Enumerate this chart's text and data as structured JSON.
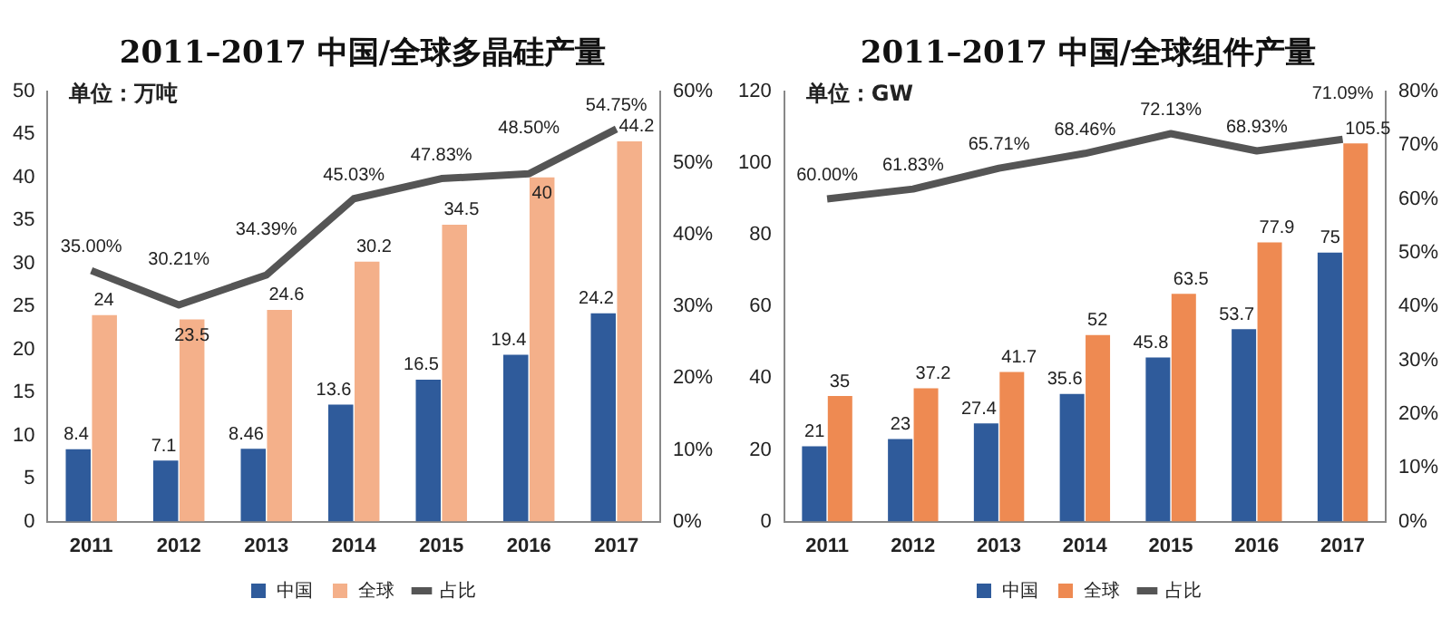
{
  "chart_data": [
    {
      "type": "bar",
      "title": "2011–2017 中国/全球多晶硅产量",
      "ylabel": "单位：万吨",
      "categories": [
        "2011",
        "2012",
        "2013",
        "2014",
        "2015",
        "2016",
        "2017"
      ],
      "series": [
        {
          "name": "中国",
          "color": "#2f5b9b",
          "values": [
            8.4,
            7.1,
            8.46,
            13.6,
            16.5,
            19.4,
            24.2
          ],
          "value_labels": [
            "8.4",
            "7.1",
            "8.46",
            "13.6",
            "16.5",
            "19.4",
            "24.2"
          ]
        },
        {
          "name": "全球",
          "color": "#f4b08a",
          "values": [
            24,
            23.5,
            24.6,
            30.2,
            34.5,
            40,
            44.2
          ],
          "value_labels": [
            "24",
            "23.5",
            "24.6",
            "30.2",
            "34.5",
            "40",
            "44.2"
          ]
        },
        {
          "name": "占比",
          "type": "line",
          "axis": "y2",
          "color": "#555555",
          "values": [
            35.0,
            30.21,
            34.39,
            45.03,
            47.83,
            48.5,
            54.75
          ],
          "value_labels": [
            "35.00%",
            "30.21%",
            "34.39%",
            "45.03%",
            "47.83%",
            "48.50%",
            "54.75%"
          ]
        }
      ],
      "ylim": [
        0,
        50
      ],
      "yticks": [
        0,
        5,
        10,
        15,
        20,
        25,
        30,
        35,
        40,
        45,
        50
      ],
      "y2lim": [
        0,
        60
      ],
      "y2ticks": [
        {
          "value": 0,
          "label": "0%"
        },
        {
          "value": 10,
          "label": "10%"
        },
        {
          "value": 20,
          "label": "20%"
        },
        {
          "value": 30,
          "label": "30%"
        },
        {
          "value": 40,
          "label": "40%"
        },
        {
          "value": 50,
          "label": "50%"
        },
        {
          "value": 60,
          "label": "60%"
        }
      ],
      "legend": "bottom",
      "marker": "none"
    },
    {
      "type": "bar",
      "title": "2011–2017 中国/全球组件产量",
      "ylabel": "单位：GW",
      "categories": [
        "2011",
        "2012",
        "2013",
        "2014",
        "2015",
        "2016",
        "2017"
      ],
      "series": [
        {
          "name": "中国",
          "color": "#2f5b9b",
          "values": [
            21,
            23,
            27.4,
            35.6,
            45.8,
            53.7,
            75
          ],
          "value_labels": [
            "21",
            "23",
            "27.4",
            "35.6",
            "45.8",
            "53.7",
            "75"
          ]
        },
        {
          "name": "全球",
          "color": "#ee8a52",
          "values": [
            35,
            37.2,
            41.7,
            52,
            63.5,
            77.9,
            105.5
          ],
          "value_labels": [
            "35",
            "37.2",
            "41.7",
            "52",
            "63.5",
            "77.9",
            "105.5"
          ]
        },
        {
          "name": "占比",
          "type": "line",
          "axis": "y2",
          "color": "#555555",
          "values": [
            60.0,
            61.83,
            65.71,
            68.46,
            72.13,
            68.93,
            71.09
          ],
          "value_labels": [
            "60.00%",
            "61.83%",
            "65.71%",
            "68.46%",
            "72.13%",
            "68.93%",
            "71.09%"
          ]
        }
      ],
      "ylim": [
        0,
        120
      ],
      "yticks": [
        0,
        20,
        40,
        60,
        80,
        100,
        120
      ],
      "y2lim": [
        0,
        80
      ],
      "y2ticks": [
        {
          "value": 0,
          "label": "0%"
        },
        {
          "value": 10,
          "label": "10%"
        },
        {
          "value": 20,
          "label": "20%"
        },
        {
          "value": 30,
          "label": "30%"
        },
        {
          "value": 40,
          "label": "40%"
        },
        {
          "value": 50,
          "label": "50%"
        },
        {
          "value": 60,
          "label": "60%"
        },
        {
          "value": 70,
          "label": "70%"
        },
        {
          "value": 80,
          "label": "80%"
        }
      ],
      "legend": "bottom",
      "marker": "none"
    }
  ]
}
